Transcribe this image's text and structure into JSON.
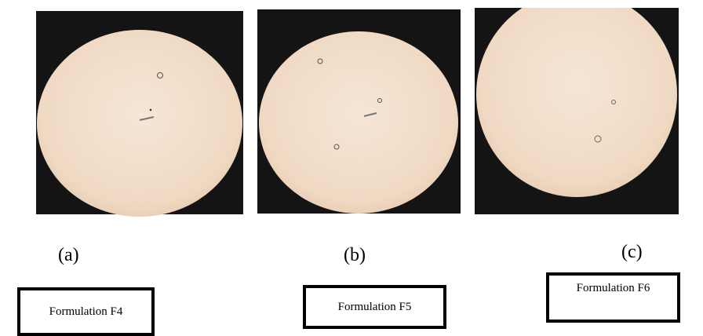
{
  "panels": [
    {
      "label": "(a)",
      "caption": "Formulation F4"
    },
    {
      "label": "(b)",
      "caption": "Formulation F5"
    },
    {
      "label": "(c)",
      "caption": "Formulation F6"
    }
  ]
}
